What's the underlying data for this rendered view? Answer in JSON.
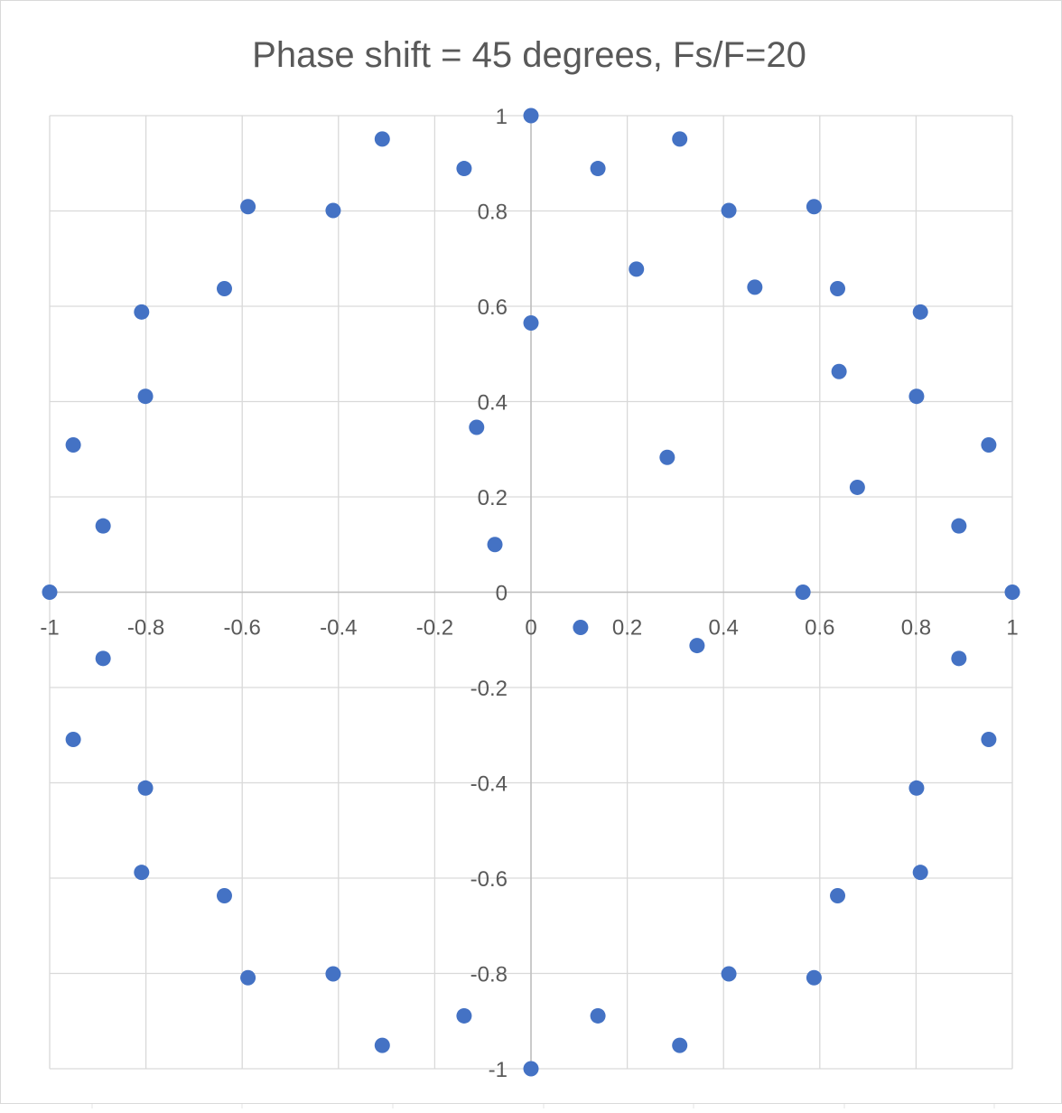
{
  "chart_data": {
    "type": "scatter",
    "title": "Phase shift = 45 degrees, Fs/F=20",
    "xlabel": "",
    "ylabel": "",
    "xlim": [
      -1,
      1
    ],
    "ylim": [
      -1,
      1
    ],
    "grid": true,
    "legend": "none",
    "x_ticks": [
      -1,
      -0.8,
      -0.6,
      -0.4,
      -0.2,
      0,
      0.2,
      0.4,
      0.6,
      0.8,
      1
    ],
    "y_ticks": [
      1,
      0.8,
      0.6,
      0.4,
      0.2,
      0,
      -0.2,
      -0.4,
      -0.6,
      -0.8,
      -1
    ],
    "x_tick_labels": [
      "-1",
      "-0.8",
      "-0.6",
      "-0.4",
      "-0.2",
      "0",
      "0.2",
      "0.4",
      "0.6",
      "0.8",
      "1"
    ],
    "y_tick_labels": [
      "1",
      "0.8",
      "0.6",
      "0.4",
      "0.2",
      "0",
      "-0.2",
      "-0.4",
      "-0.6",
      "-0.8",
      "-1"
    ],
    "colors": {
      "marker": "#4472C4",
      "grid": "#d9d9d9",
      "axis": "#bfbfbf",
      "text": "#595959",
      "frame": "#d9d9d9"
    },
    "series": [
      {
        "points": [
          [
            0,
            1
          ],
          [
            0.309,
            0.951
          ],
          [
            0.588,
            0.809
          ],
          [
            0.809,
            0.588
          ],
          [
            0.951,
            0.309
          ],
          [
            1,
            0
          ],
          [
            0.951,
            -0.309
          ],
          [
            0.809,
            -0.588
          ],
          [
            0.588,
            -0.809
          ],
          [
            0.309,
            -0.951
          ],
          [
            0,
            -1
          ],
          [
            -0.309,
            -0.951
          ],
          [
            -0.588,
            -0.809
          ],
          [
            -0.809,
            -0.588
          ],
          [
            -0.951,
            -0.309
          ],
          [
            -1,
            0
          ],
          [
            -0.951,
            0.309
          ],
          [
            -0.809,
            0.588
          ],
          [
            -0.588,
            0.809
          ],
          [
            -0.309,
            0.951
          ],
          [
            0.139,
            0.889
          ],
          [
            0.411,
            0.801
          ],
          [
            0.637,
            0.637
          ],
          [
            0.801,
            0.411
          ],
          [
            0.889,
            0.139
          ],
          [
            0.889,
            -0.139
          ],
          [
            0.801,
            -0.411
          ],
          [
            0.637,
            -0.637
          ],
          [
            0.411,
            -0.801
          ],
          [
            0.139,
            -0.889
          ],
          [
            -0.139,
            -0.889
          ],
          [
            -0.411,
            -0.801
          ],
          [
            -0.637,
            -0.637
          ],
          [
            -0.801,
            -0.411
          ],
          [
            -0.889,
            -0.139
          ],
          [
            -0.889,
            0.139
          ],
          [
            -0.801,
            0.411
          ],
          [
            -0.637,
            0.637
          ],
          [
            -0.411,
            0.801
          ],
          [
            -0.139,
            0.889
          ],
          [
            0,
            0.565
          ],
          [
            0.219,
            0.678
          ],
          [
            0.465,
            0.64
          ],
          [
            0.64,
            0.463
          ],
          [
            0.678,
            0.22
          ],
          [
            0.565,
            0
          ],
          [
            0.283,
            0.283
          ],
          [
            0.345,
            -0.112
          ],
          [
            0.103,
            -0.074
          ],
          [
            -0.075,
            0.1
          ],
          [
            -0.113,
            0.346
          ]
        ]
      }
    ]
  }
}
